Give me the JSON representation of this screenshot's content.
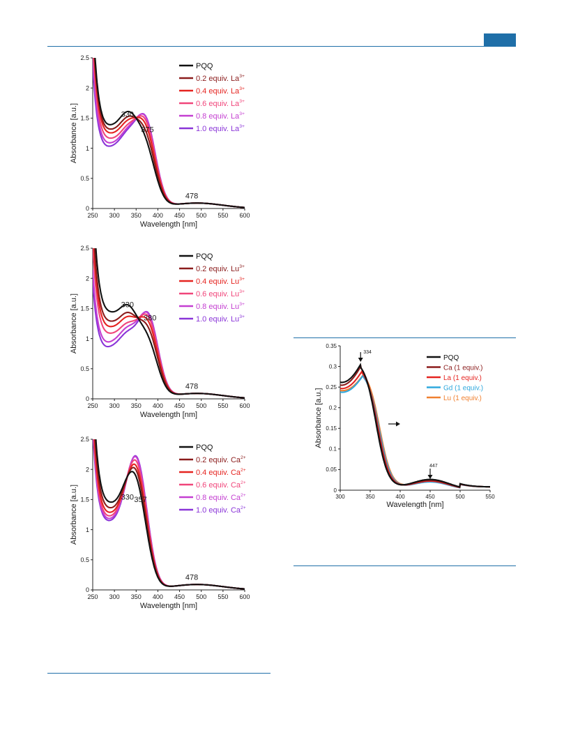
{
  "chart_data": [
    {
      "type": "line",
      "xlabel": "Wavelength [nm]",
      "ylabel": "Absorbance [a.u.]",
      "xlim": [
        250,
        600
      ],
      "ylim": [
        0,
        2.5
      ],
      "xticks": [
        "250",
        "300",
        "350",
        "400",
        "450",
        "500",
        "550",
        "600"
      ],
      "yticks": [
        "0",
        "0.5",
        "1",
        "1.5",
        "2",
        "2.5"
      ],
      "legend": "top-right",
      "annotations": [
        {
          "text": "330",
          "x": 330,
          "y": 1.52
        },
        {
          "text": "375",
          "x": 376,
          "y": 1.27
        },
        {
          "text": "478",
          "x": 478,
          "y": 0.17
        }
      ],
      "peak_shift": {
        "p1": 330,
        "p2": 375
      },
      "series": [
        {
          "name": "PQQ",
          "ion": "",
          "color": "#111111",
          "a1": 1.43,
          "a2": 0.7,
          "v": 1.18
        },
        {
          "name": "0.2 equiv. La",
          "ion": "3+",
          "color": "#8b1c1c",
          "a1": 1.33,
          "a2": 0.85,
          "v": 1.13
        },
        {
          "name": "0.4 equiv. La",
          "ion": "3+",
          "color": "#e52420",
          "a1": 1.26,
          "a2": 0.98,
          "v": 1.08
        },
        {
          "name": "0.6 equiv. La",
          "ion": "3+",
          "color": "#f0457a",
          "a1": 1.18,
          "a2": 1.08,
          "v": 1.0
        },
        {
          "name": "0.8 equiv. La",
          "ion": "3+",
          "color": "#c43fd1",
          "a1": 1.13,
          "a2": 1.15,
          "v": 0.92
        },
        {
          "name": "1.0 equiv. La",
          "ion": "3+",
          "color": "#8a35d8",
          "a1": 1.1,
          "a2": 1.17,
          "v": 0.86
        }
      ]
    },
    {
      "type": "line",
      "xlabel": "Wavelength [nm]",
      "ylabel": "Absorbance [a.u.]",
      "xlim": [
        250,
        600
      ],
      "ylim": [
        0,
        2.5
      ],
      "xticks": [
        "250",
        "300",
        "350",
        "400",
        "450",
        "500",
        "550",
        "600"
      ],
      "yticks": [
        "0",
        "0.5",
        "1",
        "1.5",
        "2",
        "2.5"
      ],
      "legend": "top-right",
      "annotations": [
        {
          "text": "330",
          "x": 330,
          "y": 1.52
        },
        {
          "text": "380",
          "x": 382,
          "y": 1.3
        },
        {
          "text": "478",
          "x": 478,
          "y": 0.17
        }
      ],
      "peak_shift": {
        "p1": 330,
        "p2": 380
      },
      "series": [
        {
          "name": "PQQ",
          "ion": "",
          "color": "#111111",
          "a1": 1.41,
          "a2": 0.7,
          "v": 1.27
        },
        {
          "name": "0.2 equiv. Lu",
          "ion": "3+",
          "color": "#8b1c1c",
          "a1": 1.28,
          "a2": 0.88,
          "v": 1.12
        },
        {
          "name": "0.4 equiv. Lu",
          "ion": "3+",
          "color": "#e52420",
          "a1": 1.21,
          "a2": 1.0,
          "v": 1.03
        },
        {
          "name": "0.6 equiv. Lu",
          "ion": "3+",
          "color": "#f0457a",
          "a1": 1.11,
          "a2": 1.1,
          "v": 0.93
        },
        {
          "name": "0.8 equiv. Lu",
          "ion": "3+",
          "color": "#c43fd1",
          "a1": 1.05,
          "a2": 1.16,
          "v": 0.77
        },
        {
          "name": "1.0 equiv. Lu",
          "ion": "3+",
          "color": "#8a35d8",
          "a1": 0.98,
          "a2": 1.19,
          "v": 0.7
        }
      ]
    },
    {
      "type": "line",
      "xlabel": "Wavelength [nm]",
      "ylabel": "Absorbance [a.u.]",
      "xlim": [
        250,
        600
      ],
      "ylim": [
        0,
        2.5
      ],
      "xticks": [
        "250",
        "300",
        "350",
        "400",
        "450",
        "500",
        "550",
        "600"
      ],
      "yticks": [
        "0",
        "0.5",
        "1",
        "1.5",
        "2",
        "2.5"
      ],
      "legend": "top-right",
      "annotations": [
        {
          "text": "330",
          "x": 330,
          "y": 1.5
        },
        {
          "text": "357",
          "x": 360,
          "y": 1.46
        },
        {
          "text": "478",
          "x": 478,
          "y": 0.17
        }
      ],
      "peak_shift": {
        "p1": 330,
        "p2": 357
      },
      "series": [
        {
          "name": "PQQ",
          "ion": "",
          "color": "#111111",
          "a1": 1.41,
          "a2": 0.8,
          "v": 1.27
        },
        {
          "name": "0.2 equiv. Ca",
          "ion": "2+",
          "color": "#8b1c1c",
          "a1": 1.33,
          "a2": 0.98,
          "v": 1.18
        },
        {
          "name": "0.4  equiv. Ca",
          "ion": "2+",
          "color": "#e52420",
          "a1": 1.28,
          "a2": 1.1,
          "v": 1.1
        },
        {
          "name": "0.6  equiv. Ca",
          "ion": "2+",
          "color": "#f0457a",
          "a1": 1.24,
          "a2": 1.22,
          "v": 1.04
        },
        {
          "name": "0.8  equiv. Ca",
          "ion": "2+",
          "color": "#c43fd1",
          "a1": 1.2,
          "a2": 1.32,
          "v": 1.0
        },
        {
          "name": "1.0  equiv. Ca",
          "ion": "2+",
          "color": "#8a35d8",
          "a1": 1.17,
          "a2": 1.36,
          "v": 0.97
        }
      ]
    },
    {
      "type": "line",
      "xlabel": "Wavelength [nm]",
      "ylabel": "Absorbance [a.u.]",
      "xlim": [
        300,
        550
      ],
      "ylim": [
        0,
        0.35
      ],
      "xticks": [
        "300",
        "350",
        "400",
        "450",
        "500",
        "550"
      ],
      "yticks": [
        "0",
        "0.05",
        "0.1",
        "0.15",
        "0.2",
        "0.25",
        "0.3",
        "0.35"
      ],
      "legend": "top-right",
      "annotations": [
        {
          "text": "334",
          "x": 334
        },
        {
          "text": "447",
          "x": 450
        }
      ],
      "series": [
        {
          "name": "PQQ",
          "color": "#111111",
          "peak": 0.305,
          "start": 0.262,
          "shift": 0,
          "tail": 0.026
        },
        {
          "name": "Ca (1 equiv.)",
          "color": "#8b1c1c",
          "peak": 0.302,
          "start": 0.255,
          "shift": 1,
          "tail": 0.024
        },
        {
          "name": "La (1 equiv.)",
          "color": "#e52420",
          "peak": 0.29,
          "start": 0.247,
          "shift": 3,
          "tail": 0.022
        },
        {
          "name": "Gd (1 equiv.)",
          "color": "#2fa8dd",
          "peak": 0.28,
          "start": 0.238,
          "shift": 5,
          "tail": 0.02
        },
        {
          "name": "Lu (1 equiv.)",
          "color": "#f08030",
          "peak": 0.283,
          "start": 0.242,
          "shift": 6,
          "tail": 0.021
        }
      ]
    }
  ]
}
